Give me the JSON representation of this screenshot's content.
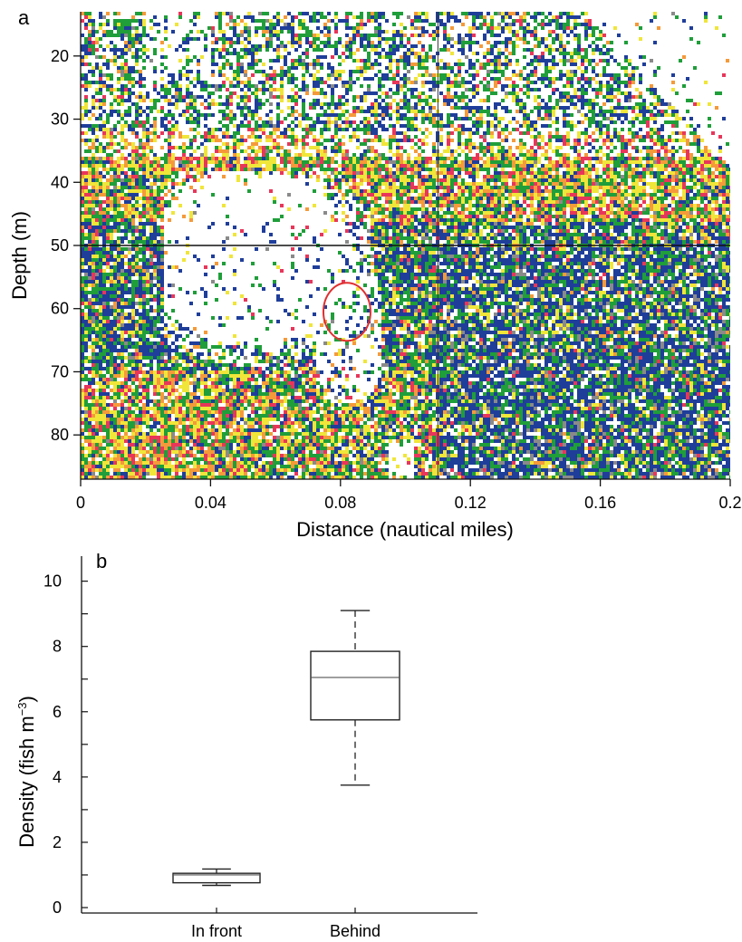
{
  "chart_data": [
    {
      "type": "heatmap",
      "panel_label": "a",
      "xlabel": "Distance (nautical miles)",
      "ylabel": "Depth (m)",
      "xlim": [
        0,
        0.2
      ],
      "ylim": [
        87,
        13
      ],
      "x_ticks": [
        "0",
        "0.04",
        "0.08",
        "0.12",
        "0.16",
        "0.2"
      ],
      "x_tick_values": [
        0,
        0.04,
        0.08,
        0.12,
        0.16,
        0.2
      ],
      "y_ticks": [
        "20",
        "30",
        "40",
        "50",
        "60",
        "70",
        "80"
      ],
      "y_tick_values": [
        20,
        30,
        40,
        50,
        60,
        70,
        80
      ],
      "reference_lines": {
        "depth": 50,
        "distance": 0.11
      },
      "annotation": {
        "shape": "circle",
        "color": "#e03030",
        "x": 0.082,
        "y": 60.5
      },
      "colors": {
        "white": "#ffffff",
        "grey": "#8a8a8a",
        "blue": "#1f3e9a",
        "green": "#1f9e3a",
        "yellow": "#f0e63a",
        "orange": "#f59a3a",
        "red": "#e8365a"
      },
      "grid": false
    },
    {
      "type": "box",
      "panel_label": "b",
      "ylabel": "Density (fish m",
      "ylabel_sup": "−3",
      "ylabel_close": ")",
      "categories": [
        "In front",
        "Behind"
      ],
      "ylim": [
        0,
        10.6
      ],
      "y_ticks": [
        "0",
        "2",
        "4",
        "6",
        "8",
        "10"
      ],
      "y_tick_values": [
        0,
        2,
        4,
        6,
        8,
        10
      ],
      "y_minor_ticks": [
        1,
        3,
        5,
        7,
        9
      ],
      "boxes": [
        {
          "min": 0.68,
          "q1": 0.76,
          "median": 1.0,
          "q3": 1.05,
          "max": 1.18
        },
        {
          "min": 3.75,
          "q1": 5.75,
          "median": 7.05,
          "q3": 7.85,
          "max": 9.1
        }
      ],
      "grid": false
    }
  ]
}
